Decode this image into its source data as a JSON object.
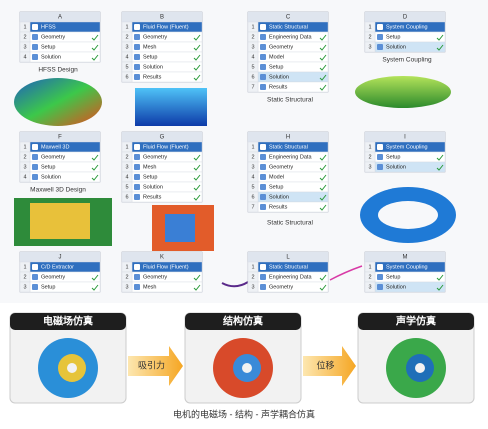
{
  "systems": [
    {
      "letter": "A",
      "rows": [
        {
          "n": 1,
          "label": "HFSS"
        },
        {
          "n": 2,
          "label": "Geometry"
        },
        {
          "n": 3,
          "label": "Setup"
        },
        {
          "n": 4,
          "label": "Solution"
        }
      ],
      "caption": "HFSS Design"
    },
    {
      "letter": "B",
      "rows": [
        {
          "n": 1,
          "label": "Fluid Flow (Fluent)"
        },
        {
          "n": 2,
          "label": "Geometry"
        },
        {
          "n": 3,
          "label": "Mesh"
        },
        {
          "n": 4,
          "label": "Setup"
        },
        {
          "n": 5,
          "label": "Solution"
        },
        {
          "n": 6,
          "label": "Results"
        }
      ]
    },
    {
      "letter": "C",
      "rows": [
        {
          "n": 1,
          "label": "Static Structural"
        },
        {
          "n": 2,
          "label": "Engineering Data"
        },
        {
          "n": 3,
          "label": "Geometry"
        },
        {
          "n": 4,
          "label": "Model"
        },
        {
          "n": 5,
          "label": "Setup"
        },
        {
          "n": 6,
          "label": "Solution"
        },
        {
          "n": 7,
          "label": "Results"
        }
      ],
      "caption": "Static Structural"
    },
    {
      "letter": "D",
      "rows": [
        {
          "n": 1,
          "label": "System Coupling"
        },
        {
          "n": 2,
          "label": "Setup"
        },
        {
          "n": 3,
          "label": "Solution"
        }
      ],
      "caption": "System Coupling"
    },
    {
      "letter": "F",
      "rows": [
        {
          "n": 1,
          "label": "Maxwell 3D"
        },
        {
          "n": 2,
          "label": "Geometry"
        },
        {
          "n": 3,
          "label": "Setup"
        },
        {
          "n": 4,
          "label": "Solution"
        }
      ],
      "caption": "Maxwell 3D Design"
    },
    {
      "letter": "G",
      "rows": [
        {
          "n": 1,
          "label": "Fluid Flow (Fluent)"
        },
        {
          "n": 2,
          "label": "Geometry"
        },
        {
          "n": 3,
          "label": "Mesh"
        },
        {
          "n": 4,
          "label": "Setup"
        },
        {
          "n": 5,
          "label": "Solution"
        },
        {
          "n": 6,
          "label": "Results"
        }
      ]
    },
    {
      "letter": "H",
      "rows": [
        {
          "n": 1,
          "label": "Static Structural"
        },
        {
          "n": 2,
          "label": "Engineering Data"
        },
        {
          "n": 3,
          "label": "Geometry"
        },
        {
          "n": 4,
          "label": "Model"
        },
        {
          "n": 5,
          "label": "Setup"
        },
        {
          "n": 6,
          "label": "Solution"
        },
        {
          "n": 7,
          "label": "Results"
        }
      ],
      "caption": "Static Structural"
    },
    {
      "letter": "I",
      "rows": [
        {
          "n": 1,
          "label": "System Coupling"
        },
        {
          "n": 2,
          "label": "Setup"
        },
        {
          "n": 3,
          "label": "Solution"
        }
      ]
    },
    {
      "letter": "J",
      "rows": [
        {
          "n": 1,
          "label": "C/D Extractor"
        },
        {
          "n": 2,
          "label": "Geometry"
        },
        {
          "n": 3,
          "label": "Setup"
        }
      ]
    },
    {
      "letter": "K",
      "rows": [
        {
          "n": 1,
          "label": "Fluid Flow (Fluent)"
        },
        {
          "n": 2,
          "label": "Geometry"
        },
        {
          "n": 3,
          "label": "Mesh"
        }
      ]
    },
    {
      "letter": "L",
      "rows": [
        {
          "n": 1,
          "label": "Static Structural"
        },
        {
          "n": 2,
          "label": "Engineering Data"
        },
        {
          "n": 3,
          "label": "Geometry"
        }
      ]
    },
    {
      "letter": "M",
      "rows": [
        {
          "n": 1,
          "label": "System Coupling"
        },
        {
          "n": 2,
          "label": "Setup"
        },
        {
          "n": 3,
          "label": "Solution"
        }
      ]
    }
  ],
  "workflow": {
    "stages": [
      "电磁场仿真",
      "结构仿真",
      "声学仿真"
    ],
    "arrows": [
      "吸引力",
      "位移"
    ],
    "caption": "电机的电磁场 - 结构 - 声学耦合仿真"
  }
}
